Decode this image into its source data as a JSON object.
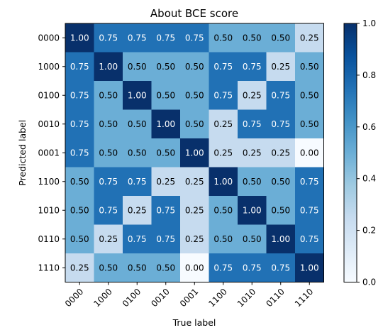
{
  "chart_data": {
    "type": "heatmap",
    "title": "About BCE score",
    "xlabel": "True label",
    "ylabel": "Predicted label",
    "x_categories": [
      "0000",
      "1000",
      "0100",
      "0010",
      "0001",
      "1100",
      "1010",
      "0110",
      "1110"
    ],
    "y_categories": [
      "0000",
      "1000",
      "0100",
      "0010",
      "0001",
      "1100",
      "1010",
      "0110",
      "1110"
    ],
    "values": [
      [
        1.0,
        0.75,
        0.75,
        0.75,
        0.75,
        0.5,
        0.5,
        0.5,
        0.25
      ],
      [
        0.75,
        1.0,
        0.5,
        0.5,
        0.5,
        0.75,
        0.75,
        0.25,
        0.5
      ],
      [
        0.75,
        0.5,
        1.0,
        0.5,
        0.5,
        0.75,
        0.25,
        0.75,
        0.5
      ],
      [
        0.75,
        0.5,
        0.5,
        1.0,
        0.5,
        0.25,
        0.75,
        0.75,
        0.5
      ],
      [
        0.75,
        0.5,
        0.5,
        0.5,
        1.0,
        0.25,
        0.25,
        0.25,
        0.0
      ],
      [
        0.5,
        0.75,
        0.75,
        0.25,
        0.25,
        1.0,
        0.5,
        0.5,
        0.75
      ],
      [
        0.5,
        0.75,
        0.25,
        0.75,
        0.25,
        0.5,
        1.0,
        0.5,
        0.75
      ],
      [
        0.5,
        0.25,
        0.75,
        0.75,
        0.25,
        0.5,
        0.5,
        1.0,
        0.75
      ],
      [
        0.25,
        0.5,
        0.5,
        0.5,
        0.0,
        0.75,
        0.75,
        0.75,
        1.0
      ]
    ],
    "value_format": "2 decimals",
    "colormap": "Blues",
    "colorbar": {
      "range": [
        0.0,
        1.0
      ],
      "ticks": [
        "0.0",
        "0.2",
        "0.4",
        "0.6",
        "0.8",
        "1.0"
      ]
    },
    "colors": {
      "value_0.00": "#f7fbff",
      "value_0.25": "#c6dbef",
      "value_0.50": "#6baed6",
      "value_0.75": "#2171b5",
      "value_1.00": "#08306b"
    },
    "xtick_rotation_deg": 45,
    "grid": false,
    "legend": "colorbar-right"
  }
}
